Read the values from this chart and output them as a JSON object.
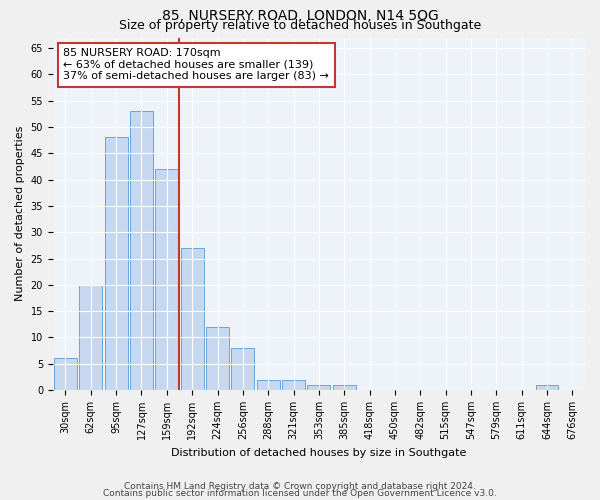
{
  "title": "85, NURSERY ROAD, LONDON, N14 5QG",
  "subtitle": "Size of property relative to detached houses in Southgate",
  "xlabel": "Distribution of detached houses by size in Southgate",
  "ylabel": "Number of detached properties",
  "bin_labels": [
    "30sqm",
    "62sqm",
    "95sqm",
    "127sqm",
    "159sqm",
    "192sqm",
    "224sqm",
    "256sqm",
    "288sqm",
    "321sqm",
    "353sqm",
    "385sqm",
    "418sqm",
    "450sqm",
    "482sqm",
    "515sqm",
    "547sqm",
    "579sqm",
    "611sqm",
    "644sqm",
    "676sqm"
  ],
  "bar_heights": [
    6,
    20,
    48,
    53,
    42,
    27,
    12,
    8,
    2,
    2,
    1,
    1,
    0,
    0,
    0,
    0,
    0,
    0,
    0,
    1,
    0
  ],
  "bar_color": "#c5d8f0",
  "bar_edgecolor": "#5b9bd5",
  "property_line_x": 4.5,
  "property_line_color": "#c0392b",
  "annotation_text": "85 NURSERY ROAD: 170sqm\n← 63% of detached houses are smaller (139)\n37% of semi-detached houses are larger (83) →",
  "annotation_box_color": "#ffffff",
  "annotation_box_edgecolor": "#c0392b",
  "ylim": [
    0,
    67
  ],
  "yticks": [
    0,
    5,
    10,
    15,
    20,
    25,
    30,
    35,
    40,
    45,
    50,
    55,
    60,
    65
  ],
  "footer_line1": "Contains HM Land Registry data © Crown copyright and database right 2024.",
  "footer_line2": "Contains public sector information licensed under the Open Government Licence v3.0.",
  "background_color": "#eef2f9",
  "grid_color": "#ffffff",
  "title_fontsize": 10,
  "subtitle_fontsize": 9,
  "label_fontsize": 8,
  "tick_fontsize": 7,
  "annotation_fontsize": 8,
  "footer_fontsize": 6.5
}
